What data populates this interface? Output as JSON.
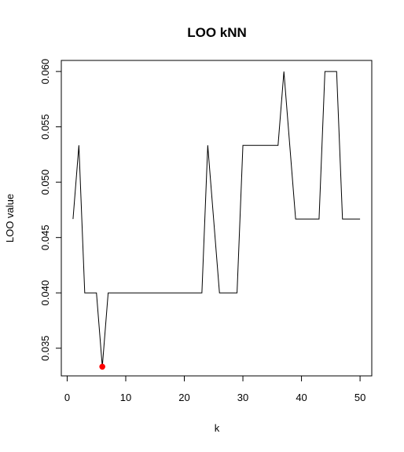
{
  "chart_data": {
    "type": "line",
    "title": "LOO kNN",
    "xlabel": "k",
    "ylabel": "LOO value",
    "xlim": [
      -1,
      52
    ],
    "ylim": [
      0.0325,
      0.061
    ],
    "xticks": [
      0,
      10,
      20,
      30,
      40,
      50
    ],
    "yticks": [
      0.035,
      0.04,
      0.045,
      0.05,
      0.055,
      0.06
    ],
    "ytick_labels": [
      "0.035",
      "0.040",
      "0.045",
      "0.050",
      "0.055",
      "0.060"
    ],
    "series": [
      {
        "x": [
          1,
          2,
          3,
          4,
          5,
          6,
          7,
          8,
          9,
          10,
          11,
          12,
          13,
          14,
          15,
          16,
          17,
          18,
          19,
          20,
          21,
          22,
          23,
          24,
          25,
          26,
          27,
          28,
          29,
          30,
          31,
          32,
          33,
          34,
          35,
          36,
          37,
          38,
          39,
          40,
          41,
          42,
          43,
          44,
          45,
          46,
          47,
          48,
          49,
          50
        ],
        "values": [
          0.04667,
          0.05333,
          0.04,
          0.04,
          0.04,
          0.03333,
          0.04,
          0.04,
          0.04,
          0.04,
          0.04,
          0.04,
          0.04,
          0.04,
          0.04,
          0.04,
          0.04,
          0.04,
          0.04,
          0.04,
          0.04,
          0.04,
          0.04,
          0.05333,
          0.04667,
          0.04,
          0.04,
          0.04,
          0.04,
          0.05333,
          0.05333,
          0.05333,
          0.05333,
          0.05333,
          0.05333,
          0.05333,
          0.06,
          0.05333,
          0.04667,
          0.04667,
          0.04667,
          0.04667,
          0.04667,
          0.06,
          0.06,
          0.06,
          0.04667,
          0.04667,
          0.04667,
          0.04667
        ],
        "color": "#000000"
      }
    ],
    "highlight": {
      "x": 6,
      "y": 0.03333,
      "color": "#ff0000"
    },
    "grid": false,
    "legend": "none"
  }
}
